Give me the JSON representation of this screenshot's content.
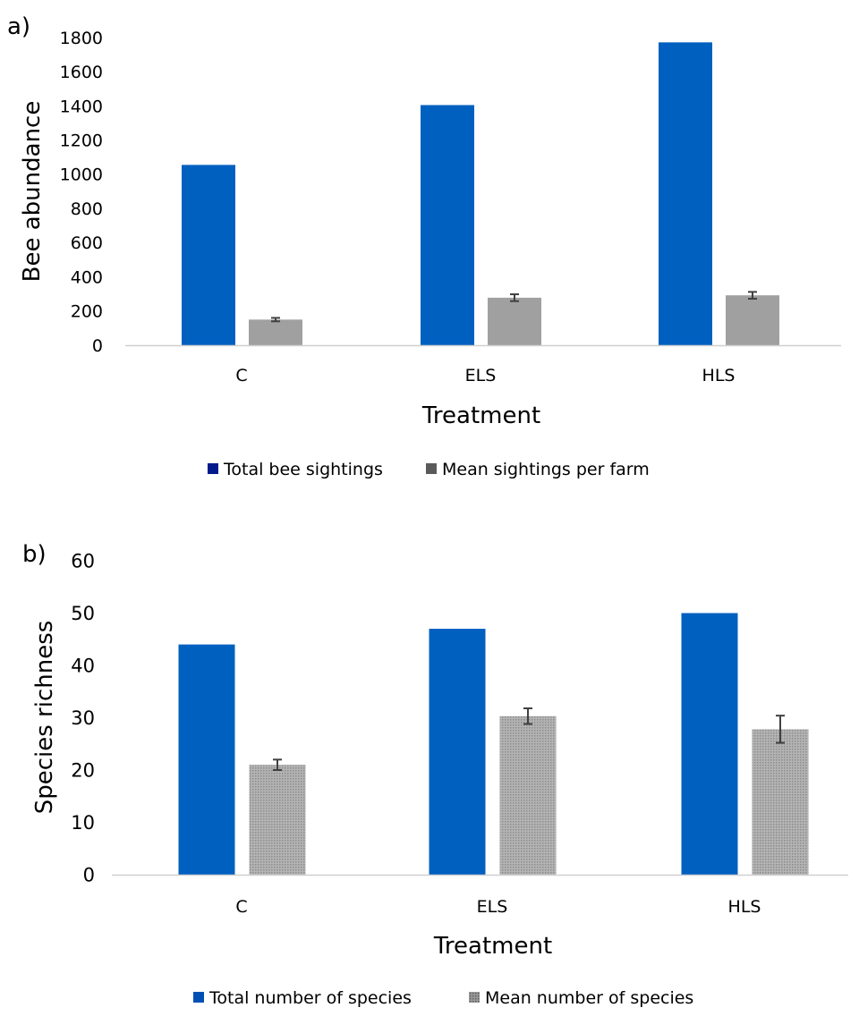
{
  "chart_data": [
    {
      "panel_label": "a)",
      "type": "bar",
      "categories": [
        "C",
        "ELS",
        "HLS"
      ],
      "series": [
        {
          "name": "Total bee sightings",
          "values": [
            1055,
            1405,
            1772
          ],
          "color": "#0060C0"
        },
        {
          "name": "Mean sightings per farm",
          "values": [
            150,
            278,
            292
          ],
          "errors": [
            10,
            20,
            20
          ],
          "color": "#A0A0A0"
        }
      ],
      "xlabel": "Treatment",
      "ylabel": "Bee abundance",
      "ylim": [
        0,
        1800
      ],
      "yticks": [
        0,
        200,
        400,
        600,
        800,
        1000,
        1200,
        1400,
        1600,
        1800
      ],
      "grid": false,
      "legend": {
        "position": "bottom",
        "items": [
          {
            "label": "Total bee sightings",
            "swatch": "#001A8C"
          },
          {
            "label": "Mean sightings per farm",
            "swatch": "#5A5A5A"
          }
        ]
      }
    },
    {
      "panel_label": "b)",
      "type": "bar",
      "categories": [
        "C",
        "ELS",
        "HLS"
      ],
      "series": [
        {
          "name": "Total number of species",
          "values": [
            44,
            47,
            50
          ],
          "color": "#0060C0"
        },
        {
          "name": "Mean number of species",
          "values": [
            21,
            30.3,
            27.8
          ],
          "errors": [
            1,
            1.5,
            2.6
          ],
          "color": "#A6A6A6",
          "pattern": "dotted"
        }
      ],
      "xlabel": "Treatment",
      "ylabel": "Species richness",
      "ylim": [
        0,
        60
      ],
      "yticks": [
        0,
        10,
        20,
        30,
        40,
        50,
        60
      ],
      "grid": false,
      "legend": {
        "position": "bottom",
        "items": [
          {
            "label": "Total number of species",
            "swatch": "#0050B4"
          },
          {
            "label": "Mean number of species",
            "swatch": "#7A7A7A"
          }
        ]
      }
    }
  ]
}
